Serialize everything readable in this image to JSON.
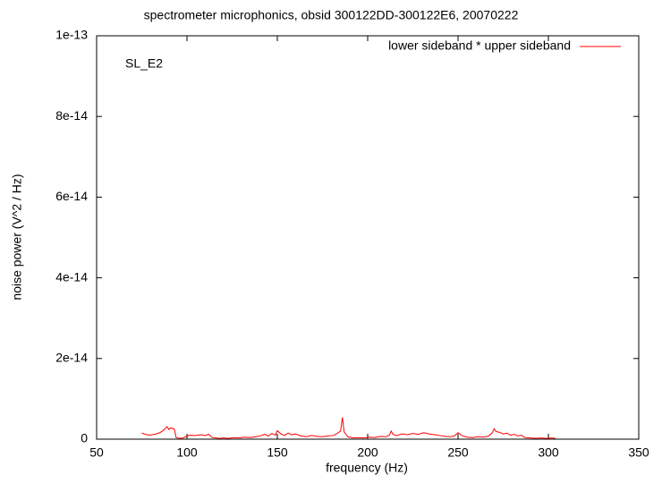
{
  "chart_data": {
    "type": "line",
    "title": "spectrometer microphonics, obsid 300122DD-300122E6, 20070222",
    "xlabel": "frequency (Hz)",
    "ylabel": "noise power (V^2 / Hz)",
    "annotation": "SL_E2",
    "legend": "upper right",
    "xlim": [
      50,
      350
    ],
    "xticks": [
      50,
      100,
      150,
      200,
      250,
      300,
      350
    ],
    "ylim": [
      0,
      1e-13
    ],
    "yticks": [
      0,
      2e-14,
      4e-14,
      6e-14,
      8e-14,
      1e-13
    ],
    "x": [
      75,
      77,
      79,
      81,
      83,
      85,
      87,
      89,
      90,
      91,
      93,
      94,
      96,
      98,
      100,
      102,
      104,
      106,
      108,
      110,
      112,
      114,
      116,
      118,
      120,
      123,
      126,
      129,
      132,
      135,
      138,
      141,
      143,
      145,
      147,
      149,
      150,
      152,
      154,
      156,
      158,
      160,
      163,
      166,
      169,
      172,
      175,
      178,
      181,
      183,
      185,
      186,
      187,
      189,
      192,
      195,
      198,
      201,
      204,
      207,
      210,
      212,
      213,
      214,
      216,
      219,
      222,
      225,
      228,
      231,
      234,
      237,
      240,
      243,
      246,
      248,
      250,
      252,
      255,
      258,
      261,
      264,
      267,
      269,
      270,
      271,
      273,
      275,
      277,
      279,
      281,
      283,
      285,
      287,
      290,
      293,
      296,
      299,
      302,
      304
    ],
    "series": [
      {
        "name": "lower sideband * upper sideband",
        "color": "#ff0000",
        "values": [
          1.5e-15,
          1.2e-15,
          1e-15,
          1.1e-15,
          1.3e-15,
          1.6e-15,
          2.2e-15,
          3.1e-15,
          2.4e-15,
          2.8e-15,
          2.5e-15,
          4e-16,
          2e-16,
          3e-16,
          8e-16,
          1e-15,
          9e-16,
          1e-15,
          1.1e-15,
          9e-16,
          1.2e-15,
          4e-16,
          3e-16,
          2e-16,
          3e-16,
          2e-16,
          4e-16,
          3e-16,
          5e-16,
          4e-16,
          6e-16,
          9e-16,
          1.2e-15,
          8e-16,
          1.4e-15,
          1e-15,
          2.1e-15,
          1.3e-15,
          9e-16,
          1.5e-15,
          1.1e-15,
          1.3e-15,
          8e-16,
          6e-16,
          9e-16,
          7e-16,
          6e-16,
          8e-16,
          9e-16,
          1.4e-15,
          2e-15,
          5.4e-15,
          1.8e-15,
          6e-16,
          3e-16,
          4e-16,
          3e-16,
          5e-16,
          4e-16,
          7e-16,
          6e-16,
          1e-15,
          2e-15,
          1.2e-15,
          9e-16,
          1.3e-15,
          1.1e-15,
          1.4e-15,
          1.2e-15,
          1.6e-15,
          1.3e-15,
          1.1e-15,
          9e-16,
          7e-16,
          6e-16,
          8e-16,
          1.6e-15,
          9e-16,
          5e-16,
          4e-16,
          6e-16,
          5e-16,
          8e-16,
          1.6e-15,
          2.6e-15,
          1.9e-15,
          1.7e-15,
          1.3e-15,
          1.5e-15,
          1e-15,
          1.2e-15,
          8e-16,
          1e-15,
          4e-16,
          3e-16,
          2e-16,
          3e-16,
          2e-16,
          3e-16,
          2e-16
        ]
      }
    ]
  }
}
